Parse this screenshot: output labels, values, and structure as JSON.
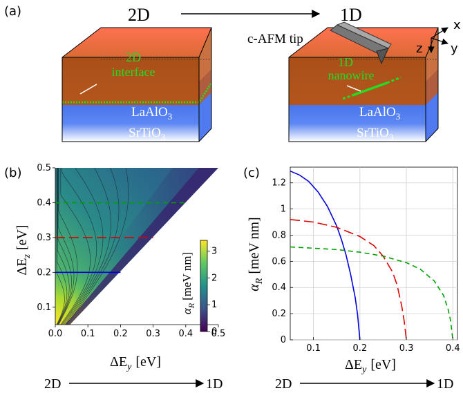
{
  "top": {
    "panel_label": "(a)",
    "from_label": "2D",
    "to_label": "1D",
    "tip_label": "c-AFM tip",
    "left_block": {
      "interface_line1": "2D",
      "interface_line2": "interface",
      "laalo3": "LaAlO",
      "srtio3": "SrTiO",
      "subscript": "3"
    },
    "right_block": {
      "interface_line1": "1D",
      "interface_line2": "nanowire",
      "laalo3": "LaAlO",
      "srtio3": "SrTiO",
      "subscript": "3"
    },
    "axes": {
      "x": "x",
      "y": "y",
      "z": "z"
    }
  },
  "colors": {
    "laalo3_top": "#ff6a48",
    "laalo3_mid": "#c85a1c",
    "srtio3": "#3a6cf0",
    "interface_green": "#22dd22",
    "curve_blue": "#0000dd",
    "curve_red": "#dd0000",
    "curve_green": "#00a000"
  },
  "chart_data": [
    {
      "panel": "(b)",
      "type": "heatmap",
      "xlabel_main": "ΔE",
      "xlabel_sub": "y",
      "xlabel_unit": "[eV]",
      "ylabel_main": "ΔE",
      "ylabel_sub": "z",
      "ylabel_unit": "[eV]",
      "xlim": [
        0,
        0.5
      ],
      "ylim": [
        0.05,
        0.5
      ],
      "x_ticks": [
        "0.0",
        "0.1",
        "0.2",
        "0.3",
        "0.4",
        "0.5"
      ],
      "y_ticks": [
        "0.1",
        "0.2",
        "0.3",
        "0.4",
        "0.5"
      ],
      "colorbar_label_main": "α",
      "colorbar_label_sub": "R",
      "colorbar_label_unit": "[meV nm]",
      "colorbar_range": [
        0,
        3.4
      ],
      "colorbar_ticks": [
        "0",
        "1",
        "2",
        "3"
      ],
      "cuts": [
        {
          "ez": 0.2,
          "x_end": 0.2,
          "style": "solid",
          "color": "blue"
        },
        {
          "ez": 0.3,
          "x_end": 0.3,
          "style": "longdash",
          "color": "red"
        },
        {
          "ez": 0.4,
          "x_end": 0.4,
          "style": "dash",
          "color": "green"
        }
      ],
      "bottom_from": "2D",
      "bottom_to": "1D"
    },
    {
      "panel": "(c)",
      "type": "line",
      "xlabel_main": "ΔE",
      "xlabel_sub": "y",
      "xlabel_unit": "[eV]",
      "ylabel_main": "α",
      "ylabel_sub": "R",
      "ylabel_unit": "[meV nm]",
      "xlim": [
        0.05,
        0.41
      ],
      "ylim": [
        0,
        1.32
      ],
      "x_ticks": [
        "0.1",
        "0.2",
        "0.3",
        "0.4"
      ],
      "y_ticks": [
        "0",
        "0.2",
        "0.4",
        "0.6",
        "0.8",
        "1",
        "1.2"
      ],
      "grid": true,
      "series": [
        {
          "ez": 0.2,
          "color": "blue",
          "style": "solid",
          "x": [
            0.05,
            0.07,
            0.09,
            0.11,
            0.13,
            0.15,
            0.16,
            0.17,
            0.18,
            0.19,
            0.195,
            0.2
          ],
          "y": [
            1.29,
            1.26,
            1.21,
            1.13,
            1.02,
            0.87,
            0.77,
            0.65,
            0.5,
            0.32,
            0.19,
            0.0
          ]
        },
        {
          "ez": 0.3,
          "color": "red",
          "style": "longdash",
          "x": [
            0.05,
            0.1,
            0.15,
            0.2,
            0.23,
            0.25,
            0.27,
            0.28,
            0.29,
            0.295,
            0.3
          ],
          "y": [
            0.92,
            0.9,
            0.86,
            0.79,
            0.72,
            0.64,
            0.52,
            0.42,
            0.26,
            0.15,
            0.0
          ]
        },
        {
          "ez": 0.4,
          "color": "green",
          "style": "dash",
          "x": [
            0.05,
            0.1,
            0.15,
            0.2,
            0.25,
            0.3,
            0.33,
            0.36,
            0.38,
            0.39,
            0.395,
            0.4
          ],
          "y": [
            0.71,
            0.7,
            0.69,
            0.67,
            0.64,
            0.59,
            0.54,
            0.45,
            0.34,
            0.23,
            0.15,
            0.0
          ]
        }
      ],
      "bottom_from": "2D",
      "bottom_to": "1D"
    }
  ]
}
